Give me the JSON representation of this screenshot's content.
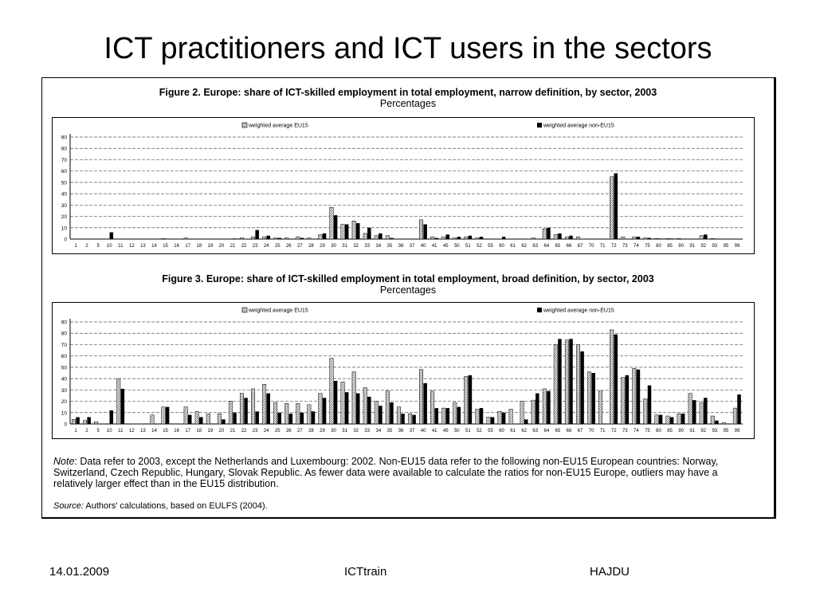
{
  "slide": {
    "title": "ICT practitioners and ICT users in the sectors",
    "footer_date": "14.01.2009",
    "footer_center": "ICTtrain",
    "footer_right": "HAJDU"
  },
  "figure2": {
    "title": "Figure 2.   Europe: share of ICT-skilled employment in total employment, narrow definition, by sector, 2003",
    "subtitle": "Percentages"
  },
  "figure3": {
    "title": "Figure 3.   Europe: share of ICT-skilled employment in total employment, broad definition, by sector, 2003",
    "subtitle": "Percentages"
  },
  "note": {
    "label": "Note",
    "text": ": Data refer to 2003, except the Netherlands and Luxembourg: 2002. Non-EU15 data refer to the following non-EU15 European countries: Norway, Switzerland, Czech Republic, Hungary, Slovak Republic. As fewer data were available to calculate the ratios for non-EU15 Europe, outliers may have a relatively larger effect than in the EU15 distribution.",
    "source_label": "Source:",
    "source_text": " Authors' calculations, based on EULFS (2004)."
  },
  "colors": {
    "eu15": "#8a8a8a",
    "non_eu15": "#000000",
    "grid": "#555555"
  },
  "chart_data": [
    {
      "type": "bar",
      "title": "Figure 2.   Europe: share of ICT-skilled employment in total employment, narrow definition, by sector, 2003",
      "subtitle": "Percentages",
      "categories": [
        "1",
        "2",
        "5",
        "10",
        "11",
        "12",
        "13",
        "14",
        "15",
        "16",
        "17",
        "18",
        "19",
        "20",
        "21",
        "22",
        "23",
        "24",
        "25",
        "26",
        "27",
        "28",
        "29",
        "30",
        "31",
        "32",
        "33",
        "34",
        "35",
        "36",
        "37",
        "40",
        "41",
        "45",
        "50",
        "51",
        "52",
        "55",
        "60",
        "61",
        "62",
        "63",
        "64",
        "65",
        "66",
        "67",
        "70",
        "71",
        "72",
        "73",
        "74",
        "75",
        "80",
        "85",
        "90",
        "91",
        "92",
        "93",
        "95",
        "99"
      ],
      "series": [
        {
          "name": "weighted average EU15",
          "values": [
            0,
            0,
            0,
            0,
            0,
            0,
            0,
            0,
            0.5,
            0,
            1,
            0,
            0,
            0,
            0,
            1,
            2,
            2,
            1,
            1,
            2,
            1,
            4,
            28,
            13,
            16,
            5,
            3,
            3,
            0,
            0,
            17,
            2,
            2,
            1,
            2,
            1,
            0,
            0,
            0,
            0,
            1,
            9,
            4,
            2,
            2,
            0,
            0,
            55,
            2,
            2,
            1,
            0.5,
            0.5,
            0.5,
            0,
            3,
            0.5,
            0,
            0
          ]
        },
        {
          "name": "weighted average non-EU15",
          "values": [
            0,
            0,
            0,
            6,
            0,
            0,
            0,
            0,
            0,
            0,
            0,
            0,
            0,
            0,
            0.5,
            0,
            8,
            3,
            1,
            0,
            1,
            0,
            5,
            21,
            13,
            14,
            10,
            5,
            1,
            0,
            0,
            13,
            1,
            4,
            2,
            3,
            2,
            0,
            2,
            0,
            0,
            0,
            10,
            5,
            3,
            0,
            0,
            0,
            58,
            0,
            2,
            1,
            0.5,
            0.5,
            0,
            0,
            4,
            0,
            0,
            0
          ]
        }
      ],
      "ylim": [
        0,
        90
      ],
      "yticks": [
        0,
        10,
        20,
        30,
        40,
        50,
        60,
        70,
        80,
        90
      ],
      "grid": true,
      "legend": "top"
    },
    {
      "type": "bar",
      "title": "Figure 3.   Europe: share of ICT-skilled employment in total employment, broad definition, by sector, 2003",
      "subtitle": "Percentages",
      "categories": [
        "1",
        "2",
        "5",
        "10",
        "11",
        "12",
        "13",
        "14",
        "15",
        "16",
        "17",
        "18",
        "19",
        "20",
        "21",
        "22",
        "23",
        "24",
        "25",
        "26",
        "27",
        "28",
        "29",
        "30",
        "31",
        "32",
        "33",
        "34",
        "35",
        "36",
        "37",
        "40",
        "41",
        "45",
        "50",
        "51",
        "52",
        "55",
        "60",
        "61",
        "62",
        "63",
        "64",
        "65",
        "66",
        "67",
        "70",
        "71",
        "72",
        "73",
        "74",
        "75",
        "80",
        "85",
        "90",
        "91",
        "92",
        "93",
        "95",
        "99"
      ],
      "series": [
        {
          "name": "weighted average EU15",
          "values": [
            4,
            3,
            2,
            0,
            40,
            0,
            0,
            8,
            15,
            0,
            15,
            11,
            9,
            9,
            20,
            27,
            31,
            35,
            19,
            18,
            18,
            17,
            27,
            58,
            37,
            46,
            32,
            20,
            29,
            15,
            9,
            48,
            29,
            14,
            19,
            42,
            13,
            6,
            11,
            13,
            20,
            21,
            31,
            70,
            74,
            70,
            46,
            29,
            83,
            41,
            49,
            22,
            8,
            7,
            9,
            27,
            19,
            7,
            1,
            14
          ]
        },
        {
          "name": "weighted average non-EU15",
          "values": [
            6,
            6,
            0,
            12,
            31,
            0,
            0,
            0,
            15,
            0,
            8,
            6,
            0,
            4,
            10,
            23,
            11,
            27,
            10,
            9,
            10,
            11,
            23,
            38,
            28,
            27,
            24,
            16,
            19,
            9,
            8,
            36,
            14,
            14,
            15,
            43,
            14,
            6,
            10,
            0,
            4,
            27,
            29,
            75,
            75,
            64,
            45,
            0,
            79,
            43,
            48,
            34,
            8,
            6,
            9,
            21,
            23,
            3,
            0,
            26
          ]
        }
      ],
      "ylim": [
        0,
        90
      ],
      "yticks": [
        0,
        10,
        20,
        30,
        40,
        50,
        60,
        70,
        80,
        90
      ],
      "grid": true,
      "legend": "top"
    }
  ]
}
